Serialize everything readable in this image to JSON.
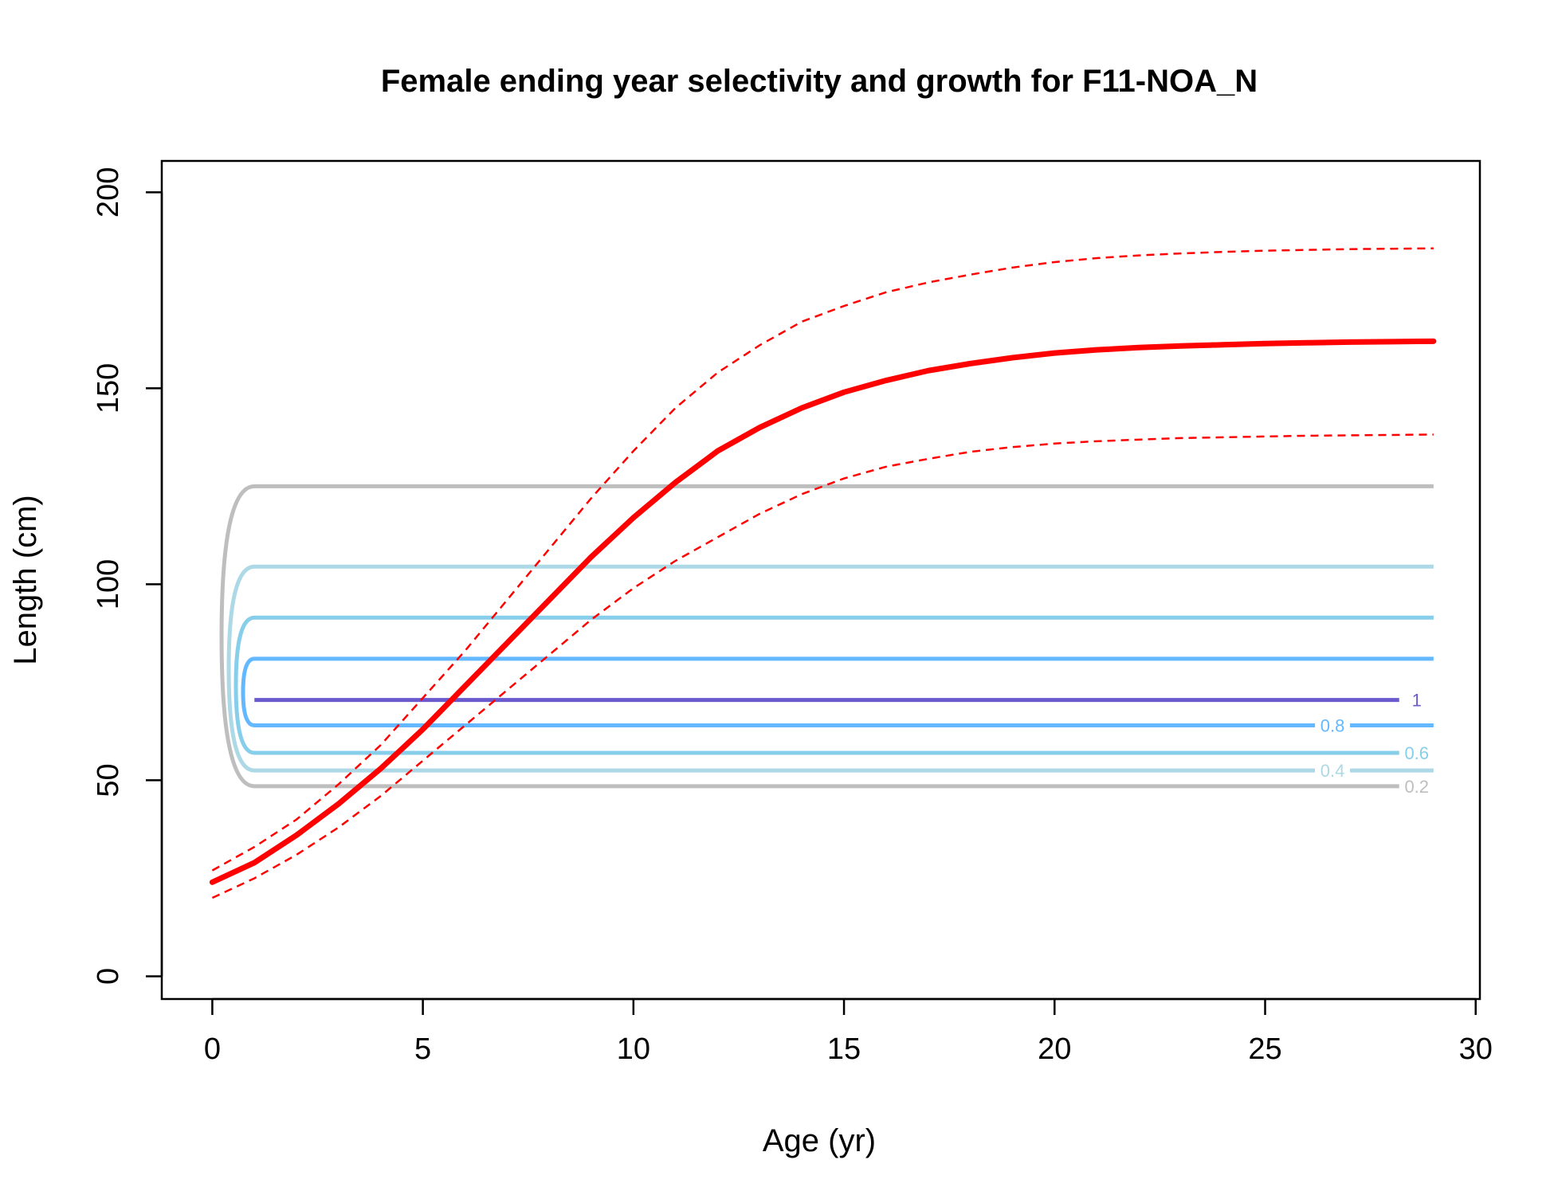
{
  "chart_data": {
    "type": "line",
    "title": "Female ending year selectivity and growth for F11-NOA_N",
    "xlabel": "Age (yr)",
    "ylabel": "Length (cm)",
    "xlim": [
      -1.2,
      30.1
    ],
    "ylim": [
      -5.8,
      208
    ],
    "x_ticks": [
      0,
      5,
      10,
      15,
      20,
      25,
      30
    ],
    "y_ticks": [
      0,
      50,
      100,
      150,
      200
    ],
    "grid": false,
    "growth": {
      "color": "#ff0000",
      "x": [
        0,
        1,
        2,
        3,
        4,
        5,
        6,
        7,
        8,
        9,
        10,
        11,
        12,
        13,
        14,
        15,
        16,
        17,
        18,
        19,
        20,
        21,
        22,
        23,
        24,
        25,
        26,
        27,
        28,
        29
      ],
      "mean": [
        24,
        29,
        36,
        44,
        53,
        63,
        74,
        85,
        96,
        107,
        117,
        126,
        134,
        140,
        145,
        149,
        152,
        154.5,
        156.3,
        157.8,
        159,
        159.8,
        160.4,
        160.8,
        161.1,
        161.4,
        161.6,
        161.8,
        161.9,
        162
      ],
      "upper": [
        27,
        33,
        40,
        49,
        59,
        71,
        83,
        96,
        109,
        122,
        134,
        145,
        154,
        161,
        167,
        171,
        174.5,
        177,
        179,
        180.8,
        182.2,
        183.2,
        183.9,
        184.4,
        184.8,
        185.1,
        185.3,
        185.5,
        185.6,
        185.7
      ],
      "lower": [
        20,
        25,
        31,
        38,
        46,
        55,
        64,
        73,
        82,
        91,
        99,
        106,
        112,
        118,
        123,
        127,
        130,
        132,
        133.8,
        135,
        135.9,
        136.5,
        136.9,
        137.3,
        137.5,
        137.7,
        137.9,
        138,
        138.1,
        138.2
      ]
    },
    "contours": [
      {
        "level": "0.2",
        "color": "#bebebe",
        "upper": 125,
        "lower": 48.5,
        "label_at": "lower"
      },
      {
        "level": "0.4",
        "color": "#add8e6",
        "upper": 104.5,
        "lower": 52.5,
        "label_at": "lower"
      },
      {
        "level": "0.6",
        "color": "#87ceeb",
        "upper": 91.5,
        "lower": 57,
        "label_at": "lower"
      },
      {
        "level": "0.8",
        "color": "#63b8ff",
        "upper": 81,
        "lower": 64,
        "label_at": "lower"
      },
      {
        "level": "1",
        "color": "#6a5acd",
        "upper": 70.5,
        "lower": 70.5,
        "label_at": "line"
      }
    ]
  }
}
